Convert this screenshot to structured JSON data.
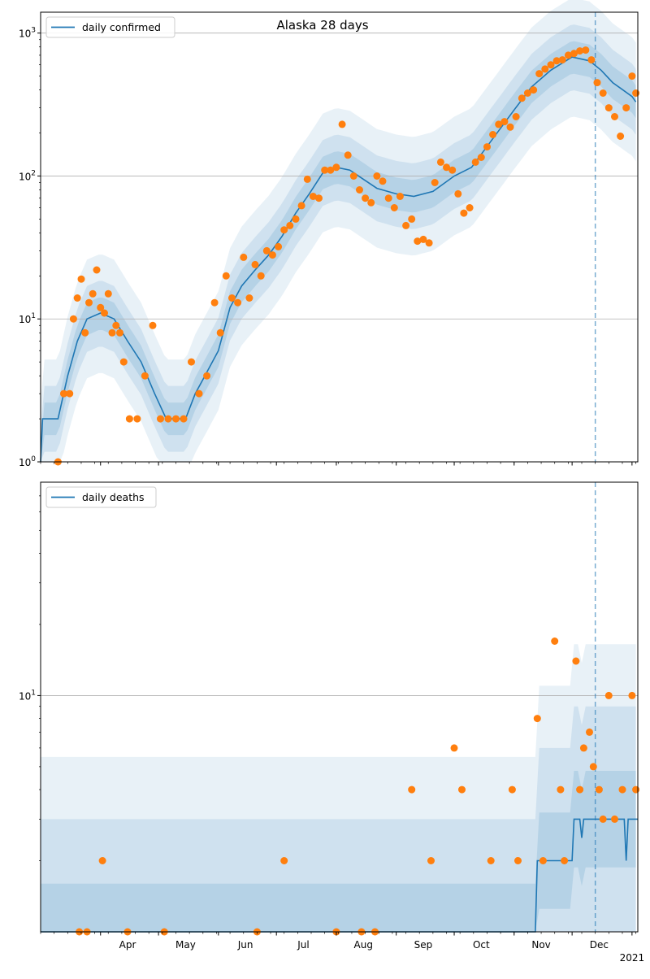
{
  "chart_data": [
    {
      "type": "line",
      "title": "Alaska 28 days",
      "yscale": "log",
      "ylim": [
        1,
        1400
      ],
      "y_ticks": [
        {
          "value": 1,
          "label": "10^0"
        },
        {
          "value": 10,
          "label": "10^1"
        },
        {
          "value": 100,
          "label": "10^2"
        },
        {
          "value": 1000,
          "label": "10^3"
        }
      ],
      "grid": "horizontal",
      "legend": {
        "placement": "top-left",
        "entries": [
          "daily confirmed"
        ]
      },
      "vline_date": "2020-12-13",
      "series": [
        {
          "name": "daily confirmed",
          "kind": "model median line",
          "x": [
            "2020-03-01",
            "2020-03-02",
            "2020-03-10",
            "2020-03-15",
            "2020-03-20",
            "2020-03-25",
            "2020-04-01",
            "2020-04-08",
            "2020-04-15",
            "2020-04-22",
            "2020-04-29",
            "2020-05-05",
            "2020-05-10",
            "2020-05-15",
            "2020-05-20",
            "2020-05-25",
            "2020-06-01",
            "2020-06-07",
            "2020-06-13",
            "2020-06-20",
            "2020-06-27",
            "2020-07-04",
            "2020-07-11",
            "2020-07-18",
            "2020-07-25",
            "2020-08-01",
            "2020-08-08",
            "2020-08-15",
            "2020-08-22",
            "2020-09-01",
            "2020-09-10",
            "2020-09-20",
            "2020-10-01",
            "2020-10-10",
            "2020-10-20",
            "2020-11-01",
            "2020-11-10",
            "2020-11-20",
            "2020-12-01",
            "2020-12-10",
            "2020-12-16",
            "2020-12-22",
            "2021-01-01",
            "2021-01-03"
          ],
          "y": [
            1,
            2,
            2,
            4,
            7,
            10,
            11,
            10,
            7,
            5,
            3,
            2,
            2,
            2,
            3,
            4,
            6,
            12,
            17,
            22,
            28,
            38,
            55,
            75,
            105,
            115,
            110,
            95,
            82,
            75,
            72,
            78,
            100,
            115,
            175,
            290,
            420,
            550,
            680,
            640,
            550,
            450,
            360,
            330
          ]
        },
        {
          "name": "daily confirmed (observed)",
          "kind": "scatter",
          "x": [
            "2020-03-10",
            "2020-03-13",
            "2020-03-16",
            "2020-03-18",
            "2020-03-20",
            "2020-03-22",
            "2020-03-24",
            "2020-03-26",
            "2020-03-28",
            "2020-03-30",
            "2020-04-01",
            "2020-04-03",
            "2020-04-05",
            "2020-04-07",
            "2020-04-09",
            "2020-04-11",
            "2020-04-13",
            "2020-04-16",
            "2020-04-20",
            "2020-04-24",
            "2020-04-28",
            "2020-05-02",
            "2020-05-06",
            "2020-05-10",
            "2020-05-14",
            "2020-05-18",
            "2020-05-22",
            "2020-05-26",
            "2020-05-30",
            "2020-06-02",
            "2020-06-05",
            "2020-06-08",
            "2020-06-11",
            "2020-06-14",
            "2020-06-17",
            "2020-06-20",
            "2020-06-23",
            "2020-06-26",
            "2020-06-29",
            "2020-07-02",
            "2020-07-05",
            "2020-07-08",
            "2020-07-11",
            "2020-07-14",
            "2020-07-17",
            "2020-07-20",
            "2020-07-23",
            "2020-07-26",
            "2020-07-29",
            "2020-08-01",
            "2020-08-04",
            "2020-08-07",
            "2020-08-10",
            "2020-08-13",
            "2020-08-16",
            "2020-08-19",
            "2020-08-22",
            "2020-08-25",
            "2020-08-28",
            "2020-08-31",
            "2020-09-03",
            "2020-09-06",
            "2020-09-09",
            "2020-09-12",
            "2020-09-15",
            "2020-09-18",
            "2020-09-21",
            "2020-09-24",
            "2020-09-27",
            "2020-09-30",
            "2020-10-03",
            "2020-10-06",
            "2020-10-09",
            "2020-10-12",
            "2020-10-15",
            "2020-10-18",
            "2020-10-21",
            "2020-10-24",
            "2020-10-27",
            "2020-10-30",
            "2020-11-02",
            "2020-11-05",
            "2020-11-08",
            "2020-11-11",
            "2020-11-14",
            "2020-11-17",
            "2020-11-20",
            "2020-11-23",
            "2020-11-26",
            "2020-11-29",
            "2020-12-02",
            "2020-12-05",
            "2020-12-08",
            "2020-12-11",
            "2020-12-14",
            "2020-12-17",
            "2020-12-20",
            "2020-12-23",
            "2020-12-26",
            "2020-12-29",
            "2021-01-01",
            "2021-01-03"
          ],
          "y": [
            1,
            3,
            3,
            10,
            14,
            19,
            8,
            13,
            15,
            22,
            12,
            11,
            15,
            8,
            9,
            8,
            5,
            2,
            2,
            4,
            9,
            2,
            2,
            2,
            2,
            5,
            3,
            4,
            13,
            8,
            20,
            14,
            13,
            27,
            14,
            24,
            20,
            30,
            28,
            32,
            42,
            45,
            50,
            62,
            95,
            72,
            70,
            110,
            110,
            115,
            230,
            140,
            100,
            80,
            70,
            65,
            100,
            92,
            70,
            60,
            72,
            45,
            50,
            35,
            36,
            34,
            90,
            125,
            115,
            110,
            75,
            55,
            60,
            125,
            135,
            160,
            195,
            230,
            240,
            220,
            260,
            350,
            380,
            400,
            520,
            560,
            600,
            640,
            650,
            700,
            720,
            750,
            760,
            650,
            450,
            380,
            300,
            260,
            190,
            300,
            500,
            380
          ]
        }
      ]
    },
    {
      "type": "line",
      "title": "",
      "yscale": "log",
      "ylim": [
        1,
        80
      ],
      "y_ticks": [
        {
          "value": 10,
          "label": "10^1"
        }
      ],
      "grid": "horizontal",
      "legend": {
        "placement": "top-left",
        "entries": [
          "daily deaths"
        ]
      },
      "vline_date": "2020-12-13",
      "x_ticks": [
        "Apr",
        "May",
        "Jun",
        "Jul",
        "Aug",
        "Sep",
        "Oct",
        "Nov",
        "Dec",
        "Jan"
      ],
      "x_year_label": "2021",
      "series": [
        {
          "name": "daily deaths",
          "kind": "model median line",
          "x": [
            "2020-03-01",
            "2020-11-12",
            "2020-11-13",
            "2020-12-01",
            "2020-12-02",
            "2020-12-05",
            "2020-12-06",
            "2020-12-07",
            "2020-12-09",
            "2020-12-12",
            "2020-12-28",
            "2020-12-29",
            "2020-12-30",
            "2021-01-04"
          ],
          "y": [
            1,
            1,
            2,
            2,
            3,
            3,
            2.5,
            3,
            3,
            3,
            3,
            2,
            3,
            3
          ]
        },
        {
          "name": "daily deaths (observed)",
          "kind": "scatter",
          "x": [
            "2020-03-21",
            "2020-03-25",
            "2020-04-02",
            "2020-04-15",
            "2020-05-04",
            "2020-06-21",
            "2020-07-05",
            "2020-08-01",
            "2020-08-14",
            "2020-08-21",
            "2020-09-09",
            "2020-09-19",
            "2020-10-01",
            "2020-10-05",
            "2020-10-20",
            "2020-10-31",
            "2020-11-03",
            "2020-11-13",
            "2020-11-16",
            "2020-11-22",
            "2020-11-25",
            "2020-11-27",
            "2020-12-03",
            "2020-12-05",
            "2020-12-07",
            "2020-12-10",
            "2020-12-12",
            "2020-12-15",
            "2020-12-17",
            "2020-12-20",
            "2020-12-23",
            "2020-12-27",
            "2021-01-01",
            "2021-01-03"
          ],
          "y": [
            1,
            1,
            2,
            1,
            1,
            1,
            2,
            1,
            1,
            1,
            4,
            2,
            6,
            4,
            2,
            4,
            2,
            8,
            2,
            17,
            4,
            2,
            14,
            4,
            6,
            7,
            5,
            4,
            3,
            10,
            3,
            4,
            10,
            4
          ]
        }
      ]
    }
  ]
}
